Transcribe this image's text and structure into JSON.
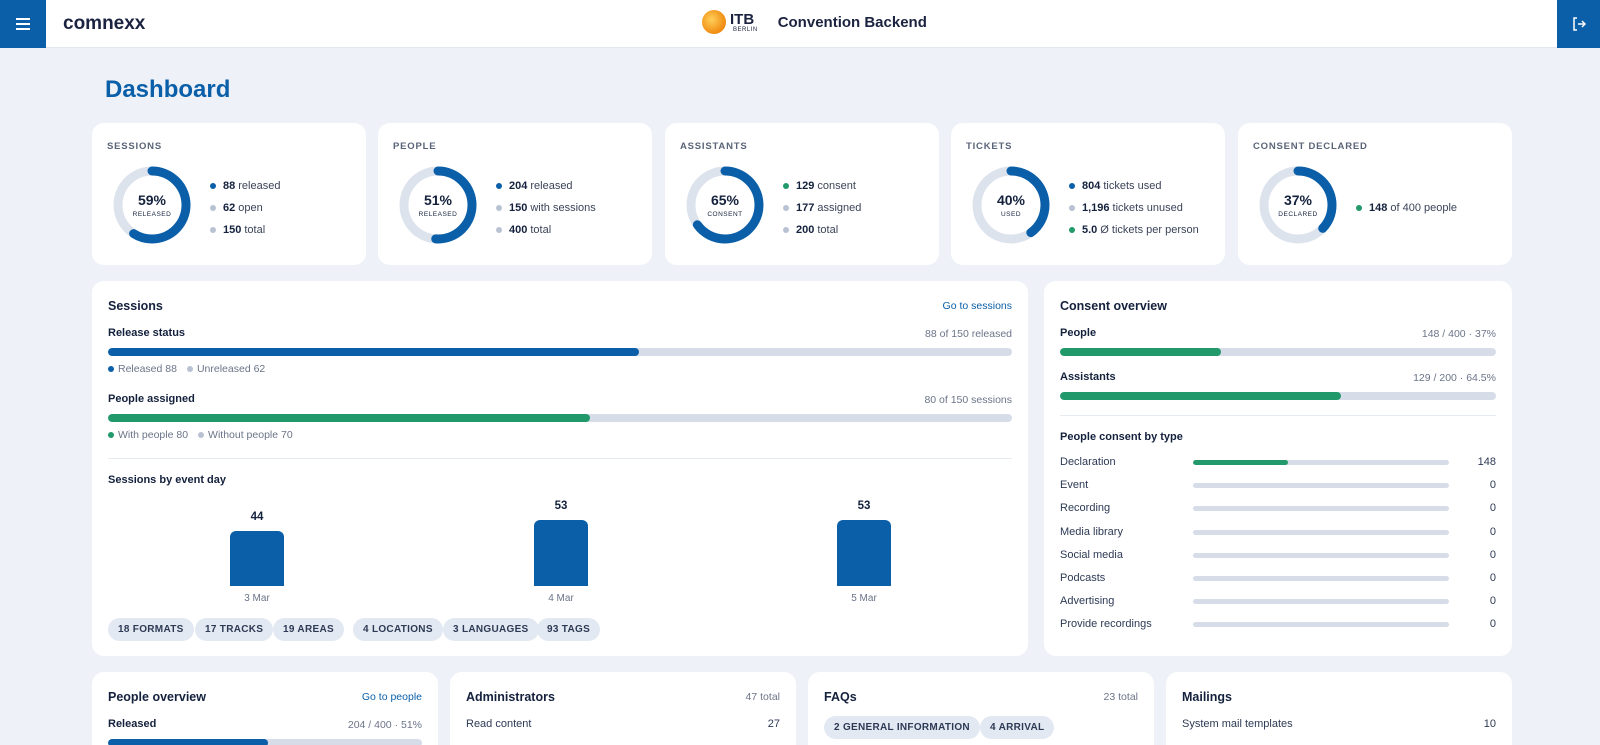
{
  "header": {
    "brand": "comnexx",
    "itb_main": "ITB",
    "itb_sub": "BERLIN",
    "app_title": "Convention Backend",
    "menu_icon": "hamburger-icon",
    "logout_icon": "logout-icon"
  },
  "page": {
    "title": "Dashboard"
  },
  "colors": {
    "primary": "#0a5fa8",
    "green": "#22996b",
    "gray": "#b9c2d3",
    "track": "#d6dde8"
  },
  "kpis": [
    {
      "label": "SESSIONS",
      "percent_value": 59,
      "percent": "59%",
      "sublabel": "RELEASED",
      "stats": [
        {
          "value": "88",
          "text": "released",
          "color": "primary"
        },
        {
          "value": "62",
          "text": "open",
          "color": "gray"
        },
        {
          "value": "150",
          "text": "total",
          "color": "gray"
        }
      ]
    },
    {
      "label": "PEOPLE",
      "percent_value": 51,
      "percent": "51%",
      "sublabel": "RELEASED",
      "stats": [
        {
          "value": "204",
          "text": "released",
          "color": "primary"
        },
        {
          "value": "150",
          "text": "with sessions",
          "color": "gray"
        },
        {
          "value": "400",
          "text": "total",
          "color": "gray"
        }
      ]
    },
    {
      "label": "ASSISTANTS",
      "percent_value": 65,
      "percent": "65%",
      "sublabel": "CONSENT",
      "stats": [
        {
          "value": "129",
          "text": "consent",
          "color": "green"
        },
        {
          "value": "177",
          "text": "assigned",
          "color": "gray"
        },
        {
          "value": "200",
          "text": "total",
          "color": "gray"
        }
      ]
    },
    {
      "label": "TICKETS",
      "percent_value": 40,
      "percent": "40%",
      "sublabel": "USED",
      "stats": [
        {
          "value": "804",
          "text": "tickets used",
          "color": "primary"
        },
        {
          "value": "1,196",
          "text": "tickets unused",
          "color": "gray"
        },
        {
          "value": "5.0",
          "text": "Ø tickets per person",
          "color": "green"
        }
      ]
    },
    {
      "label": "CONSENT DECLARED",
      "percent_value": 37,
      "percent": "37%",
      "sublabel": "DECLARED",
      "stats": [
        {
          "value": "148",
          "text": "of 400 people",
          "color": "green"
        }
      ]
    }
  ],
  "sessions": {
    "title": "Sessions",
    "link": "Go to sessions",
    "release_status": {
      "label": "Release status",
      "meta": "88 of 150 released",
      "fraction": 0.587,
      "legend": [
        {
          "text": "Released 88",
          "color": "primary"
        },
        {
          "text": "Unreleased 62",
          "color": "gray"
        }
      ]
    },
    "people_assigned": {
      "label": "People assigned",
      "meta": "80 of 150 sessions",
      "fraction": 0.533,
      "legend": [
        {
          "text": "With people 80",
          "color": "green"
        },
        {
          "text": "Without people 70",
          "color": "gray"
        }
      ]
    },
    "by_day_title": "Sessions by event day",
    "chips": [
      "18 FORMATS",
      "17 TRACKS",
      "19 AREAS",
      "4 LOCATIONS",
      "3 LANGUAGES",
      "93 TAGS"
    ]
  },
  "chart_data": {
    "type": "bar",
    "title": "Sessions by event day",
    "categories": [
      "3 Mar",
      "4 Mar",
      "5 Mar"
    ],
    "values": [
      44,
      53,
      53
    ],
    "value_labels": [
      "44",
      "53",
      "53"
    ],
    "xlabel": "",
    "ylabel": ""
  },
  "consent": {
    "title": "Consent overview",
    "people": {
      "label": "People",
      "meta": "148 / 400 · 37%",
      "fraction": 0.37
    },
    "assistants": {
      "label": "Assistants",
      "meta": "129 / 200 · 64.5%",
      "fraction": 0.645
    },
    "by_type_title": "People consent by type",
    "types": [
      {
        "label": "Declaration",
        "value": "148",
        "fraction": 0.37
      },
      {
        "label": "Event",
        "value": "0",
        "fraction": 0
      },
      {
        "label": "Recording",
        "value": "0",
        "fraction": 0
      },
      {
        "label": "Media library",
        "value": "0",
        "fraction": 0
      },
      {
        "label": "Social media",
        "value": "0",
        "fraction": 0
      },
      {
        "label": "Podcasts",
        "value": "0",
        "fraction": 0
      },
      {
        "label": "Advertising",
        "value": "0",
        "fraction": 0
      },
      {
        "label": "Provide recordings",
        "value": "0",
        "fraction": 0
      }
    ]
  },
  "people_overview": {
    "title": "People overview",
    "link": "Go to people",
    "released_label": "Released",
    "released_meta": "204 / 400 · 51%",
    "fraction": 0.51
  },
  "administrators": {
    "title": "Administrators",
    "meta": "47 total",
    "rows": [
      {
        "label": "Read content",
        "value": "27"
      }
    ]
  },
  "faqs": {
    "title": "FAQs",
    "meta": "23 total",
    "chips": [
      "2 GENERAL INFORMATION",
      "4 ARRIVAL"
    ]
  },
  "mailings": {
    "title": "Mailings",
    "rows": [
      {
        "label": "System mail templates",
        "value": "10"
      }
    ]
  }
}
